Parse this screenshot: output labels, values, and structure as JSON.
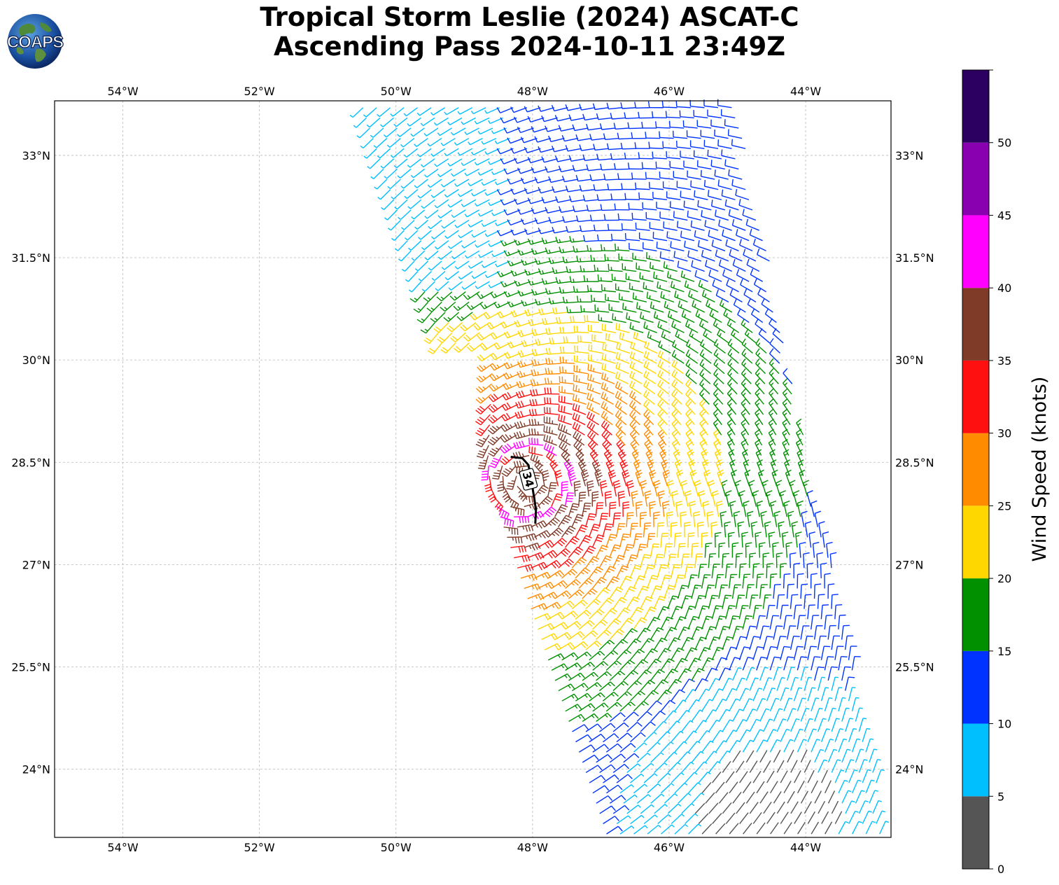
{
  "title": {
    "line1": "Tropical Storm Leslie (2024) ASCAT-C",
    "line2": "Ascending Pass 2024-10-11 23:49Z"
  },
  "logo": {
    "text": "COAPS"
  },
  "map": {
    "lon_range": [
      -55.0,
      -42.75
    ],
    "lat_range": [
      23.0,
      33.8
    ],
    "lon_ticks": [
      {
        "value": -54,
        "label": "54°W"
      },
      {
        "value": -52,
        "label": "52°W"
      },
      {
        "value": -50,
        "label": "50°W"
      },
      {
        "value": -48,
        "label": "48°W"
      },
      {
        "value": -46,
        "label": "46°W"
      },
      {
        "value": -44,
        "label": "44°W"
      }
    ],
    "lat_ticks": [
      {
        "value": 33,
        "label": "33°N"
      },
      {
        "value": 31.5,
        "label": "31.5°N"
      },
      {
        "value": 30,
        "label": "30°N"
      },
      {
        "value": 28.5,
        "label": "28.5°N"
      },
      {
        "value": 27,
        "label": "27°N"
      },
      {
        "value": 25.5,
        "label": "25.5°N"
      },
      {
        "value": 24,
        "label": "24°N"
      }
    ],
    "gridlines": true,
    "wind_field": {
      "type": "wind barbs",
      "center": {
        "lon": -48.1,
        "lat": 28.2
      },
      "swath_edges": {
        "north_west": {
          "lon": -50.5,
          "lat": 33.75
        },
        "north_east": {
          "lon": -45.0,
          "lat": 33.75
        },
        "south_west": {
          "lon": -46.9,
          "lat": 23.0
        },
        "south_east": {
          "lon": -42.8,
          "lat": 23.0
        }
      }
    },
    "contour": {
      "value": 34,
      "label": "34"
    }
  },
  "colorbar": {
    "label": "Wind Speed (knots)",
    "levels": [
      0,
      5,
      10,
      15,
      20,
      25,
      30,
      35,
      40,
      45,
      50,
      55
    ],
    "tick_labels": [
      "0",
      "5",
      "10",
      "15",
      "20",
      "25",
      "30",
      "35",
      "40",
      "45",
      "50"
    ],
    "colors": [
      "#555555",
      "#00bfff",
      "#0033ff",
      "#009000",
      "#ffd700",
      "#ff8c00",
      "#ff1010",
      "#7f3a28",
      "#ff00ff",
      "#8800b0",
      "#2c0060"
    ]
  }
}
